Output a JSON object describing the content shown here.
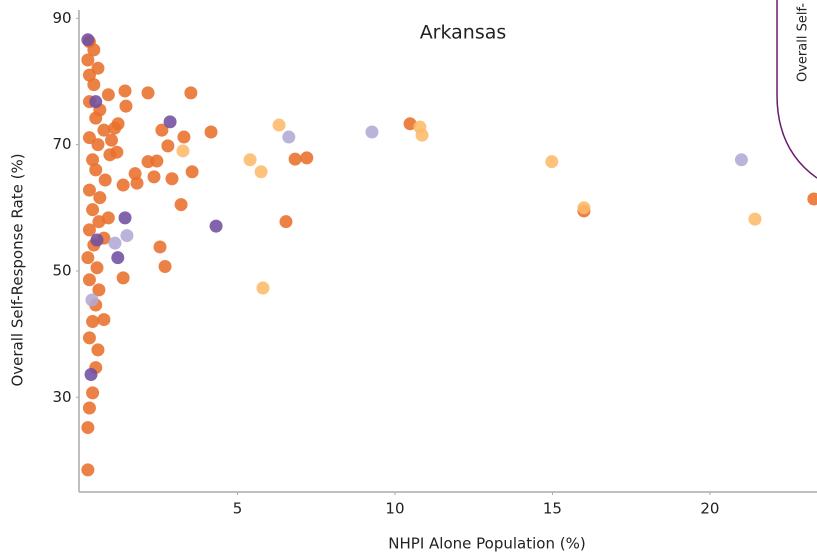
{
  "chart_data": {
    "type": "scatter",
    "title": "Arkansas",
    "x_label": "NHPI Alone Population (%)",
    "y_label": "Overall Self-Response Rate (%)",
    "legend_title": "Overall Self-",
    "xlim": [
      0,
      23.4
    ],
    "ylim": [
      15,
      91
    ],
    "xticks": [
      5,
      10,
      15,
      20
    ],
    "yticks": [
      30,
      50,
      70,
      90
    ],
    "series": [
      {
        "color": "#e8702a",
        "x": [
          2.16,
          3.52,
          2.6,
          4.16,
          3.3,
          2.79,
          2.16,
          2.44,
          3.56,
          2.92,
          2.35,
          3.21,
          2.54,
          2.7,
          1.37,
          1.75,
          1.81,
          1.37,
          1.43,
          1.46,
          1.21,
          6.54,
          6.83,
          7.2,
          10.48,
          16.0,
          23.3,
          0.25,
          0.25,
          0.3,
          0.4,
          0.5,
          0.57,
          0.3,
          0.4,
          0.76,
          0.5,
          0.6,
          0.3,
          0.54,
          0.25,
          0.44,
          0.76,
          0.3,
          0.6,
          0.9,
          0.4,
          0.63,
          0.3,
          0.8,
          0.5,
          0.4,
          0.95,
          0.57,
          0.3,
          0.76,
          1.1,
          0.5,
          0.63,
          0.3,
          0.9,
          0.44,
          0.3,
          0.57,
          0.25,
          0.44,
          0.3,
          1.17,
          1.0
        ],
        "values": [
          78.2,
          78.2,
          72.3,
          72.0,
          71.2,
          69.8,
          67.3,
          67.4,
          65.7,
          64.6,
          64.9,
          60.5,
          53.8,
          50.7,
          48.9,
          65.4,
          63.9,
          63.6,
          78.5,
          76.1,
          73.3,
          57.8,
          67.7,
          67.9,
          73.3,
          59.5,
          61.4,
          18.5,
          25.2,
          28.3,
          30.7,
          34.7,
          37.5,
          39.4,
          42.0,
          42.3,
          44.6,
          47.0,
          48.6,
          50.5,
          52.1,
          54.1,
          55.2,
          56.5,
          57.8,
          58.4,
          59.7,
          61.6,
          62.8,
          64.4,
          66.0,
          67.6,
          68.4,
          70.0,
          71.1,
          72.3,
          72.6,
          74.2,
          75.5,
          76.8,
          77.9,
          79.5,
          81.0,
          82.1,
          83.4,
          85.0,
          86.3,
          68.8,
          70.7
        ]
      },
      {
        "color": "#fdb96a",
        "x": [
          5.4,
          5.75,
          6.32,
          3.27,
          5.81,
          10.79,
          10.86,
          14.98,
          16.0,
          21.43
        ],
        "values": [
          67.6,
          65.7,
          73.1,
          69.0,
          47.3,
          72.8,
          71.5,
          67.3,
          60.0,
          58.2
        ]
      },
      {
        "color": "#6f4ea0",
        "x": [
          0.25,
          0.5,
          2.86,
          4.32,
          1.43,
          0.54,
          1.2,
          0.35
        ],
        "values": [
          86.6,
          76.8,
          73.6,
          57.1,
          58.4,
          54.9,
          52.1,
          33.6
        ]
      },
      {
        "color": "#b3a8d6",
        "x": [
          6.63,
          9.27,
          21.0,
          1.49,
          1.11,
          0.38
        ],
        "values": [
          71.2,
          72.0,
          67.6,
          55.6,
          54.4,
          45.4
        ]
      }
    ]
  }
}
